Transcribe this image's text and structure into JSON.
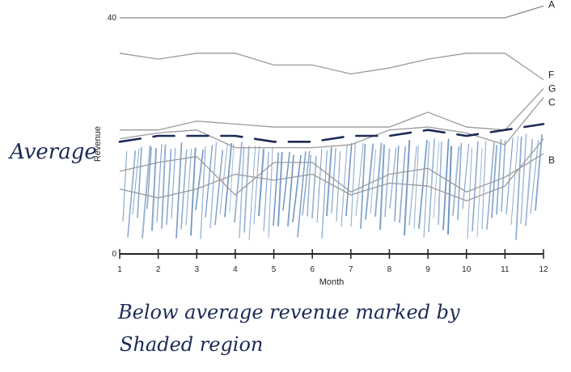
{
  "chart_data": {
    "type": "line",
    "xlabel": "Month",
    "ylabel": "Revenue",
    "x": [
      1,
      2,
      3,
      4,
      5,
      6,
      7,
      8,
      9,
      10,
      11,
      12
    ],
    "ylim": [
      0,
      40
    ],
    "ytick_labels": [
      "0",
      "40"
    ],
    "grid": false,
    "series": [
      {
        "name": "A",
        "values": [
          40,
          40,
          40,
          40,
          40,
          40,
          40,
          40,
          40,
          40,
          40,
          42
        ],
        "color": "#8a8a8a"
      },
      {
        "name": "F",
        "values": [
          34,
          33,
          34,
          34,
          32,
          32,
          30.5,
          31.5,
          33,
          34,
          34,
          29.5
        ],
        "color": "#9a9a9a"
      },
      {
        "name": "G",
        "values": [
          21,
          21,
          22.5,
          22,
          21.5,
          21.5,
          21.5,
          21.5,
          24,
          21.5,
          21,
          28
        ],
        "color": "#9a9a9a"
      },
      {
        "name": "C",
        "values": [
          19.5,
          20.5,
          21,
          18,
          18,
          18,
          18.5,
          21,
          21.5,
          20.5,
          18.5,
          26.5
        ],
        "color": "#9a9a9a"
      },
      {
        "name": "B",
        "values": [
          14,
          15.5,
          16.5,
          10,
          15.5,
          15.5,
          10.5,
          13.5,
          14.5,
          10.5,
          13,
          17
        ],
        "color": "#9a9a9a"
      },
      {
        "name": "",
        "values": [
          11,
          9.5,
          11,
          13.5,
          12.5,
          13.5,
          10,
          12,
          11.5,
          9,
          11.5,
          19.5
        ],
        "color": "#9a9a9a"
      }
    ],
    "average": {
      "values": [
        19,
        20,
        20,
        20,
        19,
        19,
        20,
        20,
        21,
        20,
        21,
        22
      ],
      "color": "#1c2a55"
    }
  },
  "annotations": {
    "average_label": "Average",
    "note_line1": "Below average revenue marked by",
    "note_line2": "Shaded region"
  },
  "colors": {
    "hatch": "#5b86b8",
    "axis": "#222222"
  }
}
